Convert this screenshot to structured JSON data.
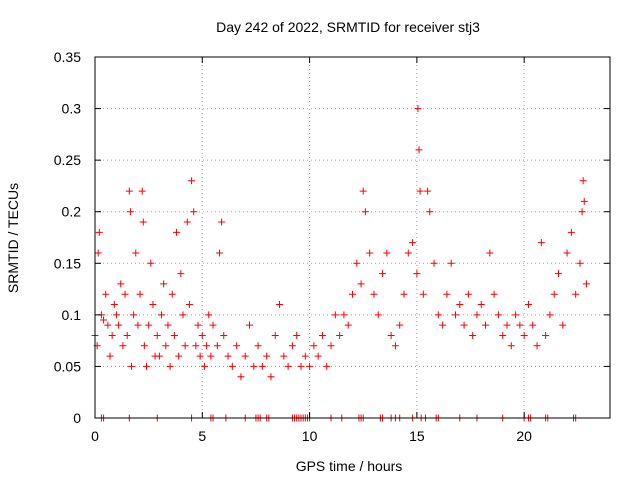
{
  "chart_data": {
    "type": "scatter",
    "title": "Day 242 of 2022, SRMTID for receiver stj3",
    "xlabel": "GPS time / hours",
    "ylabel": "SRMTID / TECUs",
    "xlim": [
      0,
      24
    ],
    "ylim": [
      0,
      0.35
    ],
    "xticks": [
      0,
      5,
      10,
      15,
      20
    ],
    "yticks": [
      0,
      0.05,
      0.1,
      0.15,
      0.2,
      0.25,
      0.3,
      0.35
    ],
    "ytick_labels": [
      "0",
      "0.05",
      "0.1",
      "0.15",
      "0.2",
      "0.25",
      "0.3",
      "0.35"
    ],
    "grid": true,
    "marker": "+",
    "color": "#ff0000",
    "series": [
      {
        "name": "",
        "points": [
          [
            0.0,
            0.08
          ],
          [
            0.1,
            0.07
          ],
          [
            0.15,
            0.16
          ],
          [
            0.2,
            0.18
          ],
          [
            0.3,
            0.1
          ],
          [
            0.4,
            0.095
          ],
          [
            0.5,
            0.12
          ],
          [
            0.6,
            0.09
          ],
          [
            0.7,
            0.06
          ],
          [
            0.8,
            0.08
          ],
          [
            0.9,
            0.11
          ],
          [
            1.0,
            0.1
          ],
          [
            1.1,
            0.09
          ],
          [
            1.2,
            0.13
          ],
          [
            1.3,
            0.07
          ],
          [
            1.4,
            0.12
          ],
          [
            1.5,
            0.08
          ],
          [
            1.6,
            0.22
          ],
          [
            1.65,
            0.2
          ],
          [
            1.7,
            0.05
          ],
          [
            1.8,
            0.1
          ],
          [
            1.9,
            0.16
          ],
          [
            2.0,
            0.09
          ],
          [
            2.1,
            0.12
          ],
          [
            2.2,
            0.22
          ],
          [
            2.25,
            0.19
          ],
          [
            2.3,
            0.07
          ],
          [
            2.4,
            0.05
          ],
          [
            2.5,
            0.09
          ],
          [
            2.6,
            0.15
          ],
          [
            2.7,
            0.11
          ],
          [
            2.8,
            0.06
          ],
          [
            2.9,
            0.08
          ],
          [
            3.0,
            0.06
          ],
          [
            3.1,
            0.1
          ],
          [
            3.2,
            0.13
          ],
          [
            3.3,
            0.07
          ],
          [
            3.4,
            0.09
          ],
          [
            3.5,
            0.05
          ],
          [
            3.6,
            0.12
          ],
          [
            3.7,
            0.08
          ],
          [
            3.8,
            0.18
          ],
          [
            3.9,
            0.06
          ],
          [
            4.0,
            0.14
          ],
          [
            4.1,
            0.1
          ],
          [
            4.2,
            0.07
          ],
          [
            4.3,
            0.19
          ],
          [
            4.4,
            0.11
          ],
          [
            4.5,
            0.23
          ],
          [
            4.6,
            0.2
          ],
          [
            4.7,
            0.07
          ],
          [
            4.8,
            0.09
          ],
          [
            4.9,
            0.06
          ],
          [
            5.0,
            0.08
          ],
          [
            5.1,
            0.05
          ],
          [
            5.2,
            0.07
          ],
          [
            5.3,
            0.1
          ],
          [
            5.4,
            0.06
          ],
          [
            5.5,
            0.09
          ],
          [
            5.7,
            0.07
          ],
          [
            5.8,
            0.16
          ],
          [
            5.9,
            0.19
          ],
          [
            6.0,
            0.08
          ],
          [
            6.2,
            0.06
          ],
          [
            6.4,
            0.05
          ],
          [
            6.6,
            0.07
          ],
          [
            6.8,
            0.04
          ],
          [
            7.0,
            0.06
          ],
          [
            7.2,
            0.09
          ],
          [
            7.4,
            0.05
          ],
          [
            7.6,
            0.07
          ],
          [
            7.8,
            0.05
          ],
          [
            8.0,
            0.06
          ],
          [
            8.2,
            0.04
          ],
          [
            8.4,
            0.08
          ],
          [
            8.6,
            0.11
          ],
          [
            8.8,
            0.06
          ],
          [
            9.0,
            0.05
          ],
          [
            9.2,
            0.07
          ],
          [
            9.4,
            0.08
          ],
          [
            9.6,
            0.05
          ],
          [
            9.8,
            0.06
          ],
          [
            10.0,
            0.05
          ],
          [
            10.2,
            0.07
          ],
          [
            10.4,
            0.06
          ],
          [
            10.6,
            0.08
          ],
          [
            10.8,
            0.05
          ],
          [
            11.0,
            0.07
          ],
          [
            11.2,
            0.1
          ],
          [
            11.4,
            0.08
          ],
          [
            11.6,
            0.1
          ],
          [
            11.8,
            0.09
          ],
          [
            12.0,
            0.12
          ],
          [
            12.2,
            0.15
          ],
          [
            12.4,
            0.13
          ],
          [
            12.5,
            0.22
          ],
          [
            12.6,
            0.2
          ],
          [
            12.8,
            0.16
          ],
          [
            13.0,
            0.12
          ],
          [
            13.2,
            0.1
          ],
          [
            13.4,
            0.14
          ],
          [
            13.6,
            0.16
          ],
          [
            13.8,
            0.08
          ],
          [
            14.0,
            0.07
          ],
          [
            14.2,
            0.09
          ],
          [
            14.4,
            0.12
          ],
          [
            14.6,
            0.16
          ],
          [
            14.8,
            0.17
          ],
          [
            15.0,
            0.14
          ],
          [
            15.05,
            0.3
          ],
          [
            15.1,
            0.26
          ],
          [
            15.15,
            0.22
          ],
          [
            15.3,
            0.12
          ],
          [
            15.5,
            0.22
          ],
          [
            15.6,
            0.2
          ],
          [
            15.8,
            0.15
          ],
          [
            16.0,
            0.1
          ],
          [
            16.2,
            0.09
          ],
          [
            16.4,
            0.12
          ],
          [
            16.6,
            0.15
          ],
          [
            16.8,
            0.1
          ],
          [
            17.0,
            0.11
          ],
          [
            17.2,
            0.09
          ],
          [
            17.4,
            0.12
          ],
          [
            17.6,
            0.08
          ],
          [
            17.8,
            0.1
          ],
          [
            18.0,
            0.11
          ],
          [
            18.2,
            0.09
          ],
          [
            18.4,
            0.16
          ],
          [
            18.6,
            0.12
          ],
          [
            18.8,
            0.1
          ],
          [
            19.0,
            0.08
          ],
          [
            19.2,
            0.09
          ],
          [
            19.4,
            0.07
          ],
          [
            19.6,
            0.1
          ],
          [
            19.8,
            0.09
          ],
          [
            20.0,
            0.08
          ],
          [
            20.2,
            0.11
          ],
          [
            20.4,
            0.09
          ],
          [
            20.6,
            0.07
          ],
          [
            20.8,
            0.17
          ],
          [
            21.0,
            0.08
          ],
          [
            21.2,
            0.1
          ],
          [
            21.4,
            0.12
          ],
          [
            21.6,
            0.14
          ],
          [
            21.8,
            0.09
          ],
          [
            22.0,
            0.16
          ],
          [
            22.2,
            0.18
          ],
          [
            22.4,
            0.12
          ],
          [
            22.6,
            0.15
          ],
          [
            22.7,
            0.2
          ],
          [
            22.75,
            0.23
          ],
          [
            22.8,
            0.21
          ],
          [
            22.9,
            0.13
          ]
        ]
      }
    ],
    "zero_x": [
      0.3,
      0.4,
      1.6,
      2.9,
      4.5,
      5.4,
      5.5,
      6.1,
      7.0,
      7.5,
      7.6,
      7.7,
      8.0,
      8.1,
      9.2,
      9.3,
      9.4,
      9.5,
      9.6,
      9.7,
      9.8,
      9.9,
      10.0,
      11.0,
      11.5,
      12.3,
      12.4,
      12.5,
      13.3,
      13.4,
      13.8,
      14.0,
      14.2,
      14.8,
      15.2,
      15.4,
      15.9,
      16.0,
      17.0,
      17.8,
      19.0,
      20.0,
      20.2,
      20.3,
      21.0,
      21.1,
      22.3,
      22.4
    ]
  }
}
